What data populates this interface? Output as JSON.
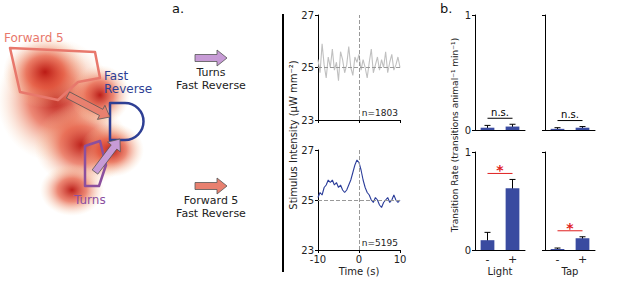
{
  "panel_labels": [
    "a.",
    "b."
  ],
  "diagram": {
    "regions": [
      {
        "label": "Forward 5",
        "color": "#e8786c"
      },
      {
        "label": "Fast Reverse",
        "color": "#2e3f94"
      },
      {
        "label": "Turns",
        "color": "#8b4f9e"
      }
    ]
  },
  "transitions": [
    {
      "from": "Turns",
      "to": "Fast Reverse",
      "color": "#c79bd6"
    },
    {
      "from": "Forward 5",
      "to": "Fast Reverse",
      "color": "#e8806f"
    }
  ],
  "chart_data": [
    {
      "type": "line",
      "color": "#c0c0c0",
      "x": [
        -10,
        -9.5,
        -9,
        -8.5,
        -8,
        -7.5,
        -7,
        -6.5,
        -6,
        -5.5,
        -5,
        -4.5,
        -4,
        -3.5,
        -3,
        -2.5,
        -2,
        -1.5,
        -1,
        -0.5,
        0,
        0.5,
        1,
        1.5,
        2,
        2.5,
        3,
        3.5,
        4,
        4.5,
        5,
        5.5,
        6,
        6.5,
        7,
        7.5,
        8,
        8.5,
        9,
        9.5,
        10
      ],
      "values": [
        25.3,
        24.8,
        25.9,
        25.1,
        24.6,
        25.4,
        25.0,
        25.7,
        24.9,
        25.2,
        24.5,
        25.6,
        25.3,
        24.8,
        25.1,
        25.8,
        25.0,
        24.7,
        25.4,
        25.2,
        25.5,
        24.9,
        25.3,
        25.0,
        24.6,
        25.2,
        25.7,
        24.8,
        25.1,
        25.4,
        24.9,
        25.3,
        25.0,
        25.6,
        24.8,
        25.2,
        25.5,
        24.9,
        25.1,
        25.4,
        25.0
      ],
      "xlim": [
        -10,
        10
      ],
      "xticks": [
        -10,
        0,
        10
      ],
      "ylim": [
        23,
        27
      ],
      "yticks": [
        23,
        25,
        27
      ],
      "tick_labels": "y",
      "reference_lines": {
        "x": 0,
        "y": 25
      },
      "annotation": {
        "text": "n=1803"
      }
    },
    {
      "type": "line",
      "color": "#2b3d9a",
      "xlabel": "Time (s)",
      "ylabel": "Stimulus Intensity (μW mm⁻²)",
      "x": [
        -10,
        -9.5,
        -9,
        -8.5,
        -8,
        -7.5,
        -7,
        -6.5,
        -6,
        -5.5,
        -5,
        -4.5,
        -4,
        -3.5,
        -3,
        -2.5,
        -2,
        -1.5,
        -1,
        -0.5,
        0,
        0.5,
        1,
        1.5,
        2,
        2.5,
        3,
        3.5,
        4,
        4.5,
        5,
        5.5,
        6,
        6.5,
        7,
        7.5,
        8,
        8.5,
        9,
        9.5,
        10
      ],
      "values": [
        25.1,
        25.3,
        25.2,
        25.5,
        25.6,
        25.8,
        25.7,
        25.8,
        25.6,
        25.7,
        25.5,
        25.6,
        25.4,
        25.3,
        25.4,
        25.6,
        25.8,
        26.1,
        26.4,
        26.6,
        26.5,
        26.2,
        25.8,
        25.5,
        25.3,
        25.2,
        25.0,
        24.9,
        25.1,
        25.0,
        24.8,
        24.7,
        24.9,
        25.0,
        25.1,
        24.9,
        25.0,
        25.2,
        25.0,
        24.9,
        25.0
      ],
      "xlim": [
        -10,
        10
      ],
      "xticks": [
        -10,
        0,
        10
      ],
      "ylim": [
        23,
        27
      ],
      "yticks": [
        23,
        25,
        27
      ],
      "tick_labels": true,
      "reference_lines": {
        "x": 0,
        "y": 25
      },
      "annotation": {
        "text": "n=5195"
      }
    },
    {
      "type": "bar",
      "color": "#3a4ba0",
      "categories": [
        "-",
        "+"
      ],
      "values": [
        0.02,
        0.03
      ],
      "errors": [
        0.02,
        0.02
      ],
      "ylim": [
        0,
        1
      ],
      "yticks": [
        0,
        1
      ],
      "tick_labels": "y",
      "annotation": {
        "text": "n.s.",
        "color": "#000000"
      }
    },
    {
      "type": "bar",
      "color": "#3a4ba0",
      "categories": [
        "-",
        "+"
      ],
      "values": [
        0.01,
        0.02
      ],
      "errors": [
        0.01,
        0.01
      ],
      "ylim": [
        0,
        1
      ],
      "yticks": [
        0,
        1
      ],
      "tick_labels": false,
      "annotation": {
        "text": "n.s.",
        "color": "#000000"
      }
    },
    {
      "type": "bar",
      "color": "#3a4ba0",
      "xlabel": "Light",
      "ylabel": "Transition Rate (transitions animal⁻¹ min⁻¹)",
      "categories": [
        "-",
        "+"
      ],
      "values": [
        0.1,
        0.63
      ],
      "errors": [
        0.08,
        0.09
      ],
      "ylim": [
        0,
        1
      ],
      "yticks": [
        0,
        1
      ],
      "tick_labels": true,
      "annotation": {
        "text": "*",
        "color": "#e02020"
      }
    },
    {
      "type": "bar",
      "color": "#3a4ba0",
      "xlabel": "Tap",
      "categories": [
        "-",
        "+"
      ],
      "values": [
        0.01,
        0.12
      ],
      "errors": [
        0.01,
        0.015
      ],
      "ylim": [
        0,
        1
      ],
      "yticks": [
        0,
        1
      ],
      "tick_labels": "x",
      "annotation": {
        "text": "*",
        "color": "#e02020"
      }
    }
  ]
}
